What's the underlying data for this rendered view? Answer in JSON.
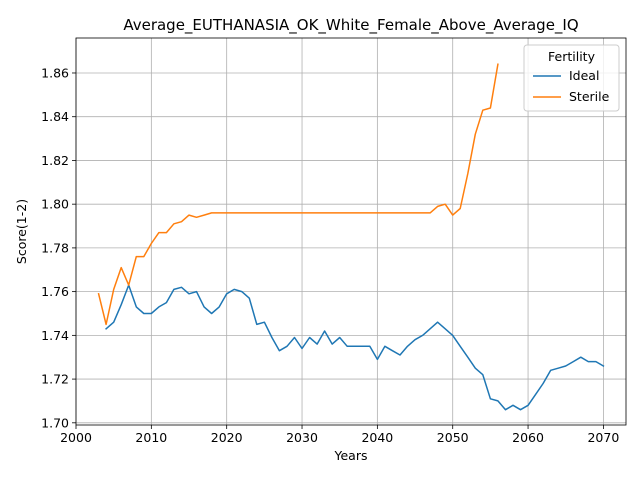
{
  "chart_data": {
    "type": "line",
    "title": "Average_EUTHANASIA_OK_White_Female_Above_Average_IQ",
    "xlabel": "Years",
    "ylabel": "Score(1-2)",
    "xlim": [
      2000,
      2073
    ],
    "ylim": [
      1.699,
      1.876
    ],
    "xticks": [
      2000,
      2010,
      2020,
      2030,
      2040,
      2050,
      2060,
      2070
    ],
    "yticks": [
      1.7,
      1.72,
      1.74,
      1.76,
      1.78,
      1.8,
      1.82,
      1.84,
      1.86
    ],
    "grid": true,
    "legend": {
      "title": "Fertility",
      "position": "top-right"
    },
    "series": [
      {
        "name": "Ideal",
        "color": "#1f77b4",
        "x": [
          2004,
          2005,
          2006,
          2007,
          2008,
          2009,
          2010,
          2011,
          2012,
          2013,
          2014,
          2015,
          2016,
          2017,
          2018,
          2019,
          2020,
          2021,
          2022,
          2023,
          2024,
          2025,
          2026,
          2027,
          2028,
          2029,
          2030,
          2031,
          2032,
          2033,
          2034,
          2035,
          2036,
          2037,
          2038,
          2039,
          2040,
          2041,
          2042,
          2043,
          2044,
          2045,
          2046,
          2047,
          2048,
          2049,
          2050,
          2051,
          2052,
          2053,
          2054,
          2055,
          2056,
          2057,
          2058,
          2059,
          2060,
          2061,
          2062,
          2063,
          2064,
          2065,
          2066,
          2067,
          2068,
          2069,
          2070
        ],
        "y": [
          1.743,
          1.746,
          1.754,
          1.763,
          1.753,
          1.75,
          1.75,
          1.753,
          1.755,
          1.761,
          1.762,
          1.759,
          1.76,
          1.753,
          1.75,
          1.753,
          1.759,
          1.761,
          1.76,
          1.757,
          1.745,
          1.746,
          1.739,
          1.733,
          1.735,
          1.739,
          1.734,
          1.739,
          1.736,
          1.742,
          1.736,
          1.739,
          1.735,
          1.735,
          1.735,
          1.735,
          1.729,
          1.735,
          1.733,
          1.731,
          1.735,
          1.738,
          1.74,
          1.743,
          1.746,
          1.743,
          1.74,
          1.735,
          1.73,
          1.725,
          1.722,
          1.711,
          1.71,
          1.706,
          1.708,
          1.706,
          1.708,
          1.713,
          1.718,
          1.724,
          1.725,
          1.726,
          1.728,
          1.73,
          1.728,
          1.728,
          1.726
        ]
      },
      {
        "name": "Sterile",
        "color": "#ff7f0e",
        "x": [
          2003,
          2004,
          2005,
          2006,
          2007,
          2008,
          2009,
          2010,
          2011,
          2012,
          2013,
          2014,
          2015,
          2016,
          2017,
          2018,
          2019,
          2020,
          2021,
          2022,
          2023,
          2024,
          2025,
          2026,
          2027,
          2028,
          2029,
          2030,
          2031,
          2032,
          2033,
          2034,
          2035,
          2036,
          2037,
          2038,
          2039,
          2040,
          2041,
          2042,
          2043,
          2044,
          2045,
          2046,
          2047,
          2048,
          2049,
          2050,
          2051,
          2052,
          2053,
          2054,
          2055,
          2056
        ],
        "y": [
          1.759,
          1.745,
          1.761,
          1.771,
          1.763,
          1.776,
          1.776,
          1.782,
          1.787,
          1.787,
          1.791,
          1.792,
          1.795,
          1.794,
          1.795,
          1.796,
          1.796,
          1.796,
          1.796,
          1.796,
          1.796,
          1.796,
          1.796,
          1.796,
          1.796,
          1.796,
          1.796,
          1.796,
          1.796,
          1.796,
          1.796,
          1.796,
          1.796,
          1.796,
          1.796,
          1.796,
          1.796,
          1.796,
          1.796,
          1.796,
          1.796,
          1.796,
          1.796,
          1.796,
          1.796,
          1.799,
          1.8,
          1.795,
          1.798,
          1.814,
          1.832,
          1.843,
          1.844,
          1.864
        ]
      }
    ]
  }
}
